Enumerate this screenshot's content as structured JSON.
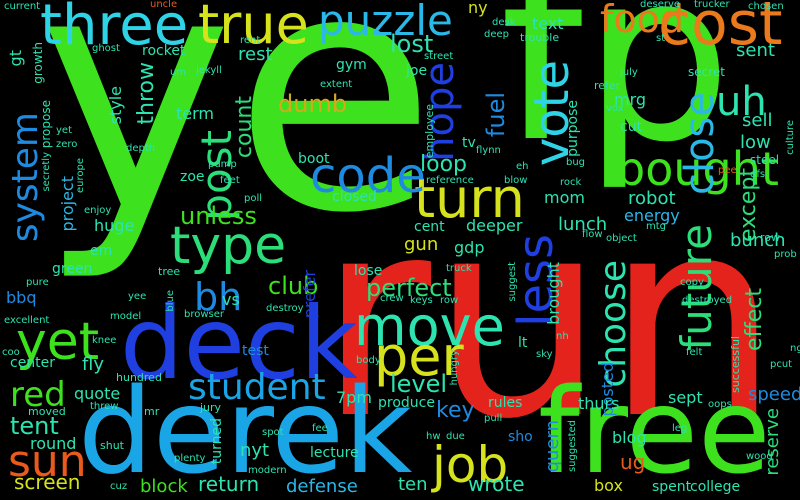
{
  "words": [
    {
      "text": "ye",
      "color": "#3ee11e"
    },
    {
      "text": "run",
      "color": "#e3231c"
    },
    {
      "text": "fp",
      "color": "#3ee11e"
    },
    {
      "text": "derek",
      "color": "#1aa6e6"
    },
    {
      "text": "free",
      "color": "#3ee11e"
    },
    {
      "text": "deck",
      "color": "#1f3fe0"
    },
    {
      "text": "three",
      "color": "#2fd3e6"
    },
    {
      "text": "true",
      "color": "#d6e21c"
    },
    {
      "text": "cost",
      "color": "#ea7a1c"
    },
    {
      "text": "puzzle",
      "color": "#2ab8e8"
    },
    {
      "text": "food",
      "color": "#ea7a1c"
    },
    {
      "text": "turn",
      "color": "#d6e21c"
    },
    {
      "text": "bought",
      "color": "#3ee11e"
    },
    {
      "text": "type",
      "color": "#2bde7a"
    },
    {
      "text": "code",
      "color": "#1f8be0"
    },
    {
      "text": "move",
      "color": "#2de3b0"
    },
    {
      "text": "per",
      "color": "#d6e21c"
    },
    {
      "text": "job",
      "color": "#d6e21c"
    },
    {
      "text": "yet",
      "color": "#3ee11e"
    },
    {
      "text": "student",
      "color": "#1aa6e6"
    },
    {
      "text": "sun",
      "color": "#ea5a1c"
    },
    {
      "text": "system",
      "color": "#1f8be0"
    },
    {
      "text": "vote",
      "color": "#2fd3e6"
    },
    {
      "text": "hope",
      "color": "#1f3fe0"
    },
    {
      "text": "less",
      "color": "#1f3fe0"
    },
    {
      "text": "post",
      "color": "#2bde7a"
    },
    {
      "text": "future",
      "color": "#2bde7a"
    },
    {
      "text": "close",
      "color": "#2ab8e8"
    },
    {
      "text": "choose",
      "color": "#2de3b0"
    },
    {
      "text": "uh",
      "color": "#2de3b0"
    },
    {
      "text": "bh",
      "color": "#1f8be0"
    },
    {
      "text": "red",
      "color": "#3ee11e"
    },
    {
      "text": "level",
      "color": "#2de3b0"
    },
    {
      "text": "perfect",
      "color": "#2bde7a"
    },
    {
      "text": "loop",
      "color": "#2de3b0"
    },
    {
      "text": "lost",
      "color": "#2de3b0"
    },
    {
      "text": "fuel",
      "color": "#1f8be0"
    },
    {
      "text": "dumb",
      "color": "#d6a81c"
    },
    {
      "text": "count",
      "color": "#2bde7a"
    },
    {
      "text": "unless",
      "color": "#3ee11e"
    },
    {
      "text": "club",
      "color": "#3ee11e"
    },
    {
      "text": "except",
      "color": "#2bde7a"
    },
    {
      "text": "effect",
      "color": "#2bde7a"
    },
    {
      "text": "tent",
      "color": "#2de3b0"
    },
    {
      "text": "screen",
      "color": "#d6e21c"
    },
    {
      "text": "return",
      "color": "#2de3b0"
    },
    {
      "text": "block",
      "color": "#3ee11e"
    },
    {
      "text": "defense",
      "color": "#2ab8e8"
    },
    {
      "text": "ten",
      "color": "#2de3b0"
    },
    {
      "text": "wrote",
      "color": "#2de3b0"
    },
    {
      "text": "key",
      "color": "#1f8be0"
    },
    {
      "text": "quern",
      "color": "#1f8be0"
    },
    {
      "text": "speed",
      "color": "#1f8be0"
    },
    {
      "text": "reserve",
      "color": "#2bde7a"
    },
    {
      "text": "ug",
      "color": "#ea5a1c"
    },
    {
      "text": "box",
      "color": "#d6e21c"
    },
    {
      "text": "nyt",
      "color": "#2de3b0"
    },
    {
      "text": "sept",
      "color": "#2de3b0"
    },
    {
      "text": "posted",
      "color": "#1f8be0"
    },
    {
      "text": "thurs",
      "color": "#2de3b0"
    },
    {
      "text": "blog",
      "color": "#2de3b0"
    },
    {
      "text": "gun",
      "color": "#d6e21c"
    },
    {
      "text": "mom",
      "color": "#2de3b0"
    },
    {
      "text": "robot",
      "color": "#2de3b0"
    },
    {
      "text": "lunch",
      "color": "#2de3b0"
    },
    {
      "text": "energy",
      "color": "#2ab8e8"
    },
    {
      "text": "bunch",
      "color": "#2de3b0"
    },
    {
      "text": "sent",
      "color": "#2de3b0"
    },
    {
      "text": "sell",
      "color": "#2de3b0"
    },
    {
      "text": "low",
      "color": "#2de3b0"
    },
    {
      "text": "text",
      "color": "#2de3b0"
    },
    {
      "text": "gt",
      "color": "#2de3b0"
    },
    {
      "text": "project",
      "color": "#2ab8e8"
    },
    {
      "text": "throw",
      "color": "#2de3b0"
    },
    {
      "text": "rest",
      "color": "#2de3b0"
    },
    {
      "text": "term",
      "color": "#2de3b0"
    },
    {
      "text": "style",
      "color": "#2de3b0"
    },
    {
      "text": "fly",
      "color": "#2de3b0"
    },
    {
      "text": "huge",
      "color": "#2de3b0"
    },
    {
      "text": "bbq",
      "color": "#1f8be0"
    },
    {
      "text": "round",
      "color": "#2de3b0"
    },
    {
      "text": "quote",
      "color": "#2de3b0"
    },
    {
      "text": "rules",
      "color": "#2de3b0"
    },
    {
      "text": "7pm",
      "color": "#2de3b0"
    },
    {
      "text": "prefer",
      "color": "#1f3fe0"
    },
    {
      "text": "vs",
      "color": "#2de3b0"
    },
    {
      "text": "lecture",
      "color": "#2de3b0"
    },
    {
      "text": "turned",
      "color": "#2de3b0"
    },
    {
      "text": "gdp",
      "color": "#2de3b0"
    },
    {
      "text": "deeper",
      "color": "#2de3b0"
    },
    {
      "text": "brought",
      "color": "#2de3b0"
    },
    {
      "text": "mrg",
      "color": "#2de3b0"
    },
    {
      "text": "cut",
      "color": "#2de3b0"
    },
    {
      "text": "college",
      "color": "#2de3b0"
    },
    {
      "text": "spent",
      "color": "#2de3b0"
    },
    {
      "text": "ny",
      "color": "#d6e21c"
    },
    {
      "text": "gym",
      "color": "#2de3b0"
    },
    {
      "text": "rocket",
      "color": "#2de3b0"
    },
    {
      "text": "zoe",
      "color": "#2de3b0"
    },
    {
      "text": "boot",
      "color": "#2de3b0"
    },
    {
      "text": "closed",
      "color": "#2de3b0"
    },
    {
      "text": "lose",
      "color": "#2de3b0"
    },
    {
      "text": "produce",
      "color": "#2de3b0"
    },
    {
      "text": "center",
      "color": "#2de3b0"
    },
    {
      "text": "test",
      "color": "#1f8be0"
    },
    {
      "text": "green",
      "color": "#2de3b0"
    },
    {
      "text": "lt",
      "color": "#2de3b0"
    },
    {
      "text": "em",
      "color": "#2de3b0"
    },
    {
      "text": "purpose",
      "color": "#2de3b0"
    },
    {
      "text": "secret",
      "color": "#2de3b0"
    },
    {
      "text": "steel",
      "color": "#2de3b0"
    },
    {
      "text": "tv",
      "color": "#2de3b0"
    },
    {
      "text": "cent",
      "color": "#2de3b0"
    },
    {
      "text": "joe",
      "color": "#2de3b0"
    },
    {
      "text": "trouble",
      "color": "#2de3b0"
    },
    {
      "text": "refer",
      "color": "#2de3b0"
    },
    {
      "text": "row",
      "color": "#2de3b0"
    },
    {
      "text": "successful",
      "color": "#2de3b0"
    },
    {
      "text": "moved",
      "color": "#2de3b0"
    },
    {
      "text": "mr",
      "color": "#2de3b0"
    },
    {
      "text": "shut",
      "color": "#2de3b0"
    },
    {
      "text": "sho",
      "color": "#1f8be0"
    },
    {
      "text": "jury",
      "color": "#2de3b0"
    },
    {
      "text": "tree",
      "color": "#2de3b0"
    },
    {
      "text": "hundred",
      "color": "#2de3b0"
    },
    {
      "text": "employee",
      "color": "#2de3b0"
    },
    {
      "text": "current",
      "color": "#2de3b0"
    },
    {
      "text": "uncle",
      "color": "#ea5a1c"
    },
    {
      "text": "deserve",
      "color": "#2de3b0"
    },
    {
      "text": "trucker",
      "color": "#2de3b0"
    },
    {
      "text": "chosen",
      "color": "#2de3b0"
    },
    {
      "text": "ghost",
      "color": "#2de3b0"
    },
    {
      "text": "jekyll",
      "color": "#2de3b0"
    },
    {
      "text": "rent",
      "color": "#2de3b0"
    },
    {
      "text": "desk",
      "color": "#2de3b0"
    },
    {
      "text": "deep",
      "color": "#2de3b0"
    },
    {
      "text": "street",
      "color": "#2de3b0"
    },
    {
      "text": "st",
      "color": "#2de3b0"
    },
    {
      "text": "july",
      "color": "#2de3b0"
    },
    {
      "text": "vox",
      "color": "#2de3b0"
    },
    {
      "text": "growth",
      "color": "#2de3b0"
    },
    {
      "text": "propose",
      "color": "#2de3b0"
    },
    {
      "text": "zero",
      "color": "#2de3b0"
    },
    {
      "text": "yet",
      "color": "#2de3b0"
    },
    {
      "text": "extent",
      "color": "#2de3b0"
    },
    {
      "text": "depth",
      "color": "#2de3b0"
    },
    {
      "text": "pump",
      "color": "#2de3b0"
    },
    {
      "text": "flynn",
      "color": "#2de3b0"
    },
    {
      "text": "eh",
      "color": "#2de3b0"
    },
    {
      "text": "bug",
      "color": "#2de3b0"
    },
    {
      "text": "pee",
      "color": "#ea5a1c"
    },
    {
      "text": "dfs",
      "color": "#2de3b0"
    },
    {
      "text": "reference",
      "color": "#2de3b0"
    },
    {
      "text": "blow",
      "color": "#2de3b0"
    },
    {
      "text": "rock",
      "color": "#2de3b0"
    },
    {
      "text": "flow",
      "color": "#2de3b0"
    },
    {
      "text": "object",
      "color": "#2de3b0"
    },
    {
      "text": "mtg",
      "color": "#2de3b0"
    },
    {
      "text": "culture",
      "color": "#2de3b0"
    },
    {
      "text": "feet",
      "color": "#2de3b0"
    },
    {
      "text": "poll",
      "color": "#2de3b0"
    },
    {
      "text": "enjoy",
      "color": "#2de3b0"
    },
    {
      "text": "europe",
      "color": "#2de3b0"
    },
    {
      "text": "secretly",
      "color": "#2de3b0"
    },
    {
      "text": "truck",
      "color": "#2de3b0"
    },
    {
      "text": "suggest",
      "color": "#2de3b0"
    },
    {
      "text": "crew",
      "color": "#2de3b0"
    },
    {
      "text": "keys",
      "color": "#2de3b0"
    },
    {
      "text": "row",
      "color": "#2de3b0"
    },
    {
      "text": "pure",
      "color": "#2de3b0"
    },
    {
      "text": "yee",
      "color": "#2de3b0"
    },
    {
      "text": "blue",
      "color": "#2de3b0"
    },
    {
      "text": "browser",
      "color": "#2de3b0"
    },
    {
      "text": "destroy",
      "color": "#2de3b0"
    },
    {
      "text": "copy",
      "color": "#2de3b0"
    },
    {
      "text": "destroyed",
      "color": "#2de3b0"
    },
    {
      "text": "prob",
      "color": "#2de3b0"
    },
    {
      "text": "excellent",
      "color": "#2de3b0"
    },
    {
      "text": "model",
      "color": "#2de3b0"
    },
    {
      "text": "coo",
      "color": "#2de3b0"
    },
    {
      "text": "knee",
      "color": "#2de3b0"
    },
    {
      "text": "body",
      "color": "#2de3b0"
    },
    {
      "text": "hungry",
      "color": "#2de3b0"
    },
    {
      "text": "nh",
      "color": "#2de3b0"
    },
    {
      "text": "sky",
      "color": "#2de3b0"
    },
    {
      "text": "felt",
      "color": "#2de3b0"
    },
    {
      "text": "pcut",
      "color": "#2de3b0"
    },
    {
      "text": "oops",
      "color": "#2de3b0"
    },
    {
      "text": "threw",
      "color": "#2de3b0"
    },
    {
      "text": "pull",
      "color": "#2de3b0"
    },
    {
      "text": "hw",
      "color": "#2de3b0"
    },
    {
      "text": "due",
      "color": "#2de3b0"
    },
    {
      "text": "spot",
      "color": "#2de3b0"
    },
    {
      "text": "fee",
      "color": "#2de3b0"
    },
    {
      "text": "suggested",
      "color": "#2de3b0"
    },
    {
      "text": "leg",
      "color": "#2de3b0"
    },
    {
      "text": "wood",
      "color": "#2de3b0"
    },
    {
      "text": "cuz",
      "color": "#2de3b0"
    },
    {
      "text": "plenty",
      "color": "#2de3b0"
    },
    {
      "text": "modern",
      "color": "#2de3b0"
    },
    {
      "text": "um",
      "color": "#2de3b0"
    },
    {
      "text": "ng",
      "color": "#2de3b0"
    }
  ]
}
